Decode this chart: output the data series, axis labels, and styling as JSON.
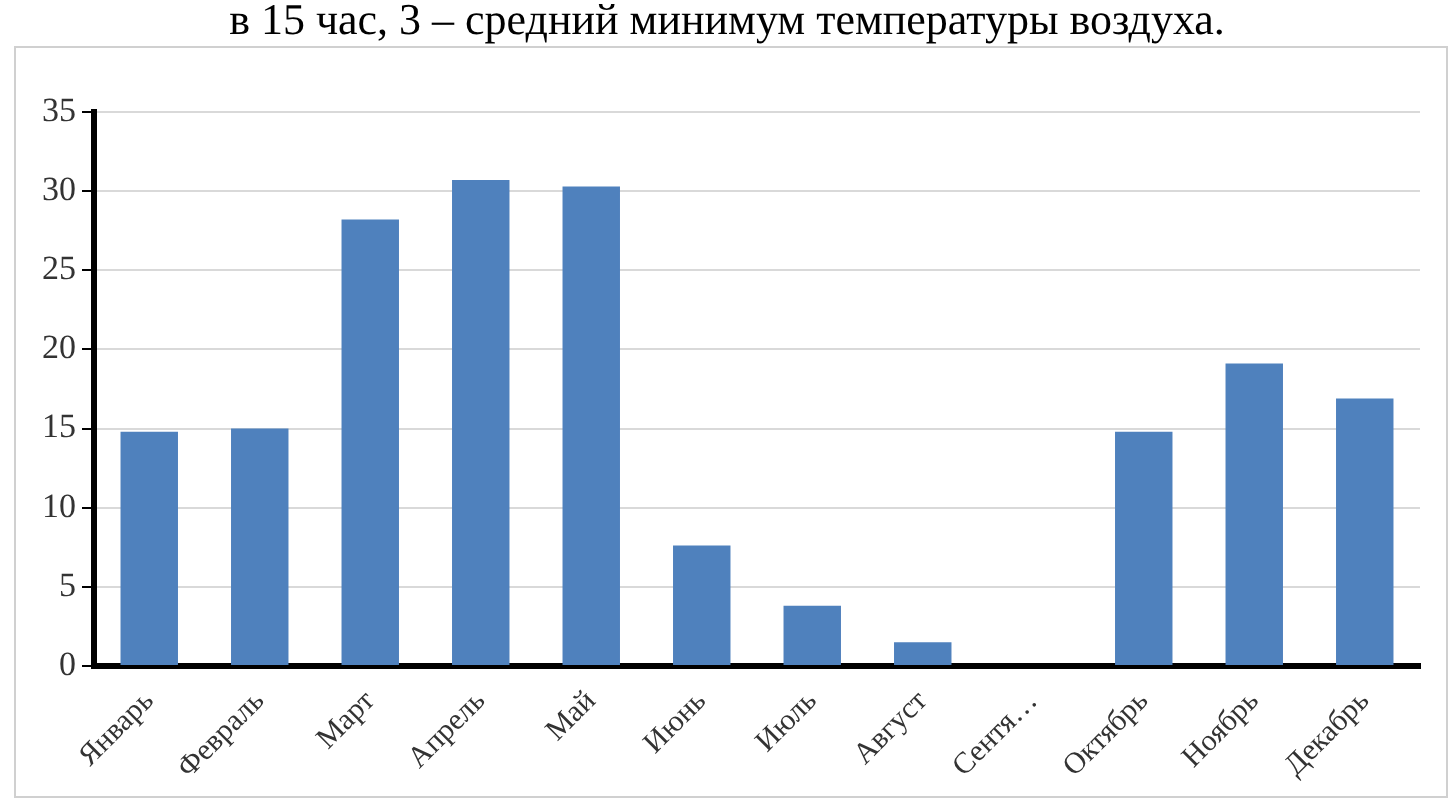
{
  "chart_data": {
    "type": "bar",
    "title": "в 15 час, 3 – средний минимум температуры воздуха.",
    "categories": [
      "Январь",
      "Февраль",
      "Март",
      "Апрель",
      "Май",
      "Июнь",
      "Июль",
      "Август",
      "Сентя…",
      "Октябрь",
      "Ноябрь",
      "Декабрь"
    ],
    "values": [
      14.8,
      15.0,
      28.2,
      30.7,
      30.3,
      7.6,
      3.8,
      1.5,
      0,
      14.8,
      19.1,
      16.9
    ],
    "color": "#4f81bd",
    "ylim": [
      0,
      35
    ],
    "yticks": [
      0,
      5,
      10,
      15,
      20,
      25,
      30,
      35
    ],
    "grid": "y"
  }
}
